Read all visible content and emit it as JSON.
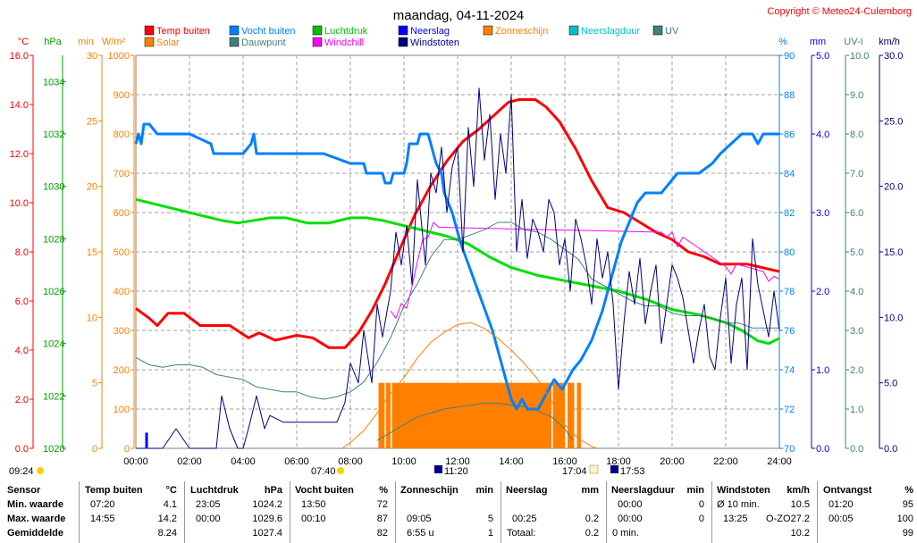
{
  "title": "maandag, 04-11-2024",
  "copyright": "Copyright © Meteo24-Culemborg",
  "chart_data": {
    "type": "line",
    "xlabel": "",
    "xlim": [
      0,
      24
    ],
    "x_ticks": [
      "00:00",
      "02:00",
      "04:00",
      "06:00",
      "08:00",
      "10:00",
      "12:00",
      "14:00",
      "16:00",
      "18:00",
      "20:00",
      "22:00",
      "24:00"
    ],
    "axes": {
      "temp": {
        "label": "°C",
        "range": [
          0,
          16
        ],
        "ticks": [
          "0.0",
          "2.0",
          "4.0",
          "6.0",
          "8.0",
          "10.0",
          "12.0",
          "14.0",
          "16.0"
        ]
      },
      "pressure": {
        "label": "hPa",
        "range": [
          1020,
          1035
        ],
        "ticks": [
          "1020",
          "1022",
          "1024",
          "1026",
          "1028",
          "1030",
          "1032",
          "1034"
        ]
      },
      "minutes": {
        "label": "min",
        "range": [
          0,
          30
        ],
        "ticks": [
          "0",
          "5",
          "10",
          "15",
          "20",
          "25",
          "30"
        ]
      },
      "solar": {
        "label": "W/m²",
        "range": [
          0,
          1000
        ],
        "ticks": [
          "0",
          "100",
          "200",
          "300",
          "400",
          "500",
          "600",
          "700",
          "800",
          "900",
          "1000"
        ]
      },
      "humidity": {
        "label": "%",
        "range": [
          70,
          90
        ],
        "ticks": [
          "70",
          "72",
          "74",
          "76",
          "78",
          "80",
          "82",
          "84",
          "86",
          "88",
          "90"
        ]
      },
      "rain": {
        "label": "mm",
        "range": [
          0,
          5
        ],
        "ticks": [
          "0.0",
          "1.0",
          "2.0",
          "3.0",
          "4.0",
          "5.0"
        ]
      },
      "uv": {
        "label": "UV-I",
        "range": [
          0,
          10
        ],
        "ticks": [
          "0.0",
          "1.0",
          "2.0",
          "3.0",
          "4.0",
          "5.0",
          "6.0",
          "7.0",
          "8.0",
          "9.0",
          "10.0"
        ]
      },
      "wind": {
        "label": "km/h",
        "range": [
          0,
          30
        ],
        "ticks": [
          "0.0",
          "5.0",
          "10.0",
          "15.0",
          "20.0",
          "25.0",
          "30.0"
        ]
      }
    },
    "legend": [
      {
        "name": "Temp buiten",
        "color": "#ff0000"
      },
      {
        "name": "Solar",
        "color": "#ff8000"
      },
      {
        "name": "Vocht buiten",
        "color": "#0080ff"
      },
      {
        "name": "Dauwpunt",
        "color": "#408080"
      },
      {
        "name": "Luchtdruk",
        "color": "#00c000"
      },
      {
        "name": "Windchill",
        "color": "#ff00ff"
      },
      {
        "name": "Neerslag",
        "color": "#0000ff"
      },
      {
        "name": "Windstoten",
        "color": "#000080"
      },
      {
        "name": "Zonneschijn",
        "color": "#ff8000"
      },
      {
        "name": "Neerslagduur",
        "color": "#00c0c0"
      },
      {
        "name": "UV",
        "color": "#408080"
      }
    ],
    "series": [
      {
        "name": "Temp buiten",
        "axis": "temp",
        "color": "#ff0000",
        "width": 3,
        "x": [
          0,
          0.5,
          0.8,
          1.2,
          1.8,
          2.4,
          2.9,
          3.5,
          4.2,
          4.6,
          5.2,
          6.0,
          6.6,
          7.2,
          7.8,
          8.3,
          8.8,
          9.3,
          9.8,
          10.4,
          11.0,
          11.6,
          12.2,
          12.8,
          13.4,
          13.9,
          14.3,
          14.9,
          15.3,
          15.8,
          16.4,
          17.0,
          17.6,
          18.2,
          18.8,
          19.4,
          20.0,
          20.6,
          21.2,
          21.8,
          22.4,
          22.8,
          23.2,
          23.6,
          24.0
        ],
        "y": [
          5.7,
          5.3,
          5.0,
          5.5,
          5.5,
          5.0,
          5.0,
          5.0,
          4.5,
          4.7,
          4.4,
          4.6,
          4.5,
          4.1,
          4.1,
          4.7,
          5.6,
          6.7,
          8.0,
          9.5,
          10.7,
          11.7,
          12.5,
          13.0,
          13.6,
          14.1,
          14.2,
          14.2,
          13.9,
          13.3,
          12.2,
          10.9,
          9.8,
          9.6,
          9.2,
          8.8,
          8.5,
          8.0,
          7.8,
          7.5,
          7.5,
          7.5,
          7.4,
          7.3,
          7.2
        ]
      },
      {
        "name": "Windchill",
        "axis": "temp",
        "color": "#ff00ff",
        "width": 1,
        "x": [
          9.5,
          9.7,
          9.9,
          10.1,
          10.3,
          10.5,
          10.7,
          10.9,
          11.1,
          11.3,
          19.6,
          19.8,
          20.0,
          20.2,
          20.4,
          22.0,
          22.2,
          22.4,
          23.4,
          23.6,
          23.8,
          24.0
        ],
        "y": [
          5.6,
          5.3,
          5.9,
          5.7,
          6.6,
          7.6,
          8.5,
          8.6,
          9.2,
          9.0,
          8.8,
          8.6,
          8.8,
          8.2,
          8.6,
          7.4,
          7.1,
          7.5,
          7.2,
          6.8,
          7.0,
          6.9
        ]
      },
      {
        "name": "Luchtdruk",
        "axis": "pressure",
        "color": "#00e000",
        "width": 3,
        "x": [
          0,
          0.8,
          1.6,
          2.4,
          3.2,
          3.8,
          4.4,
          5.0,
          5.6,
          6.4,
          7.2,
          8.0,
          8.6,
          9.2,
          10.0,
          10.8,
          11.6,
          12.4,
          13.2,
          14.0,
          15.0,
          16.0,
          17.0,
          18.0,
          19.0,
          20.0,
          21.0,
          22.0,
          22.6,
          23.2,
          23.6,
          24.0
        ],
        "y": [
          1029.5,
          1029.3,
          1029.1,
          1028.9,
          1028.7,
          1028.6,
          1028.7,
          1028.8,
          1028.8,
          1028.6,
          1028.6,
          1028.8,
          1028.8,
          1028.7,
          1028.5,
          1028.3,
          1028.1,
          1027.8,
          1027.3,
          1026.9,
          1026.6,
          1026.4,
          1026.2,
          1026.0,
          1025.7,
          1025.3,
          1025.1,
          1024.8,
          1024.5,
          1024.1,
          1024.0,
          1024.2
        ]
      },
      {
        "name": "Vocht buiten",
        "axis": "humidity",
        "color": "#0080ff",
        "width": 3,
        "x": [
          0,
          0.1,
          0.2,
          0.3,
          0.4,
          0.5,
          0.8,
          1.0,
          2.0,
          2.8,
          2.9,
          4.0,
          4.3,
          4.4,
          4.5,
          5.0,
          6.0,
          7.0,
          8.0,
          8.5,
          8.6,
          9.2,
          9.3,
          9.5,
          9.6,
          10.0,
          10.1,
          10.2,
          10.5,
          10.6,
          10.9,
          11.0,
          11.2,
          11.4,
          11.5,
          11.8,
          12.1,
          12.5,
          12.9,
          13.3,
          13.6,
          13.9,
          14.0,
          14.2,
          14.4,
          14.6,
          15.0,
          15.2,
          15.6,
          15.9,
          16.1,
          16.3,
          16.6,
          17.0,
          17.4,
          17.8,
          18.1,
          18.4,
          18.7,
          19.0,
          19.3,
          19.6,
          19.9,
          20.2,
          21.0,
          21.5,
          21.8,
          22.2,
          22.6,
          23.0,
          23.2,
          23.4,
          23.7,
          24.0
        ],
        "y": [
          85.5,
          86.0,
          85.5,
          86.5,
          86.5,
          86.5,
          86.0,
          86.0,
          86.0,
          85.5,
          85.0,
          85.0,
          85.5,
          86.0,
          85.0,
          85.0,
          85.0,
          85.0,
          84.5,
          84.5,
          84.0,
          84.0,
          83.5,
          83.5,
          84.0,
          84.0,
          84.5,
          85.5,
          85.5,
          86.0,
          86.0,
          85.5,
          84.5,
          84.0,
          83.0,
          82.0,
          80.5,
          79.0,
          77.5,
          76.0,
          74.5,
          73.0,
          72.5,
          72.0,
          72.5,
          72.0,
          72.0,
          72.5,
          73.5,
          73.0,
          73.5,
          74.0,
          74.5,
          75.5,
          77.0,
          79.0,
          80.5,
          81.5,
          82.5,
          83.0,
          83.0,
          83.0,
          83.5,
          84.0,
          84.0,
          84.5,
          85.0,
          85.5,
          86.0,
          86.0,
          85.5,
          86.0,
          86.0,
          86.0
        ]
      },
      {
        "name": "Dauwpunt",
        "axis": "temp",
        "color": "#408080",
        "width": 1,
        "x": [
          0,
          0.5,
          1.0,
          1.5,
          2.0,
          2.5,
          3.0,
          3.5,
          4.0,
          4.5,
          5.0,
          5.5,
          6.0,
          6.5,
          7.0,
          7.5,
          8.0,
          8.5,
          9.0,
          9.5,
          10.0,
          10.5,
          11.0,
          11.5,
          12.0,
          12.5,
          13.0,
          13.5,
          14.0,
          14.5,
          15.0,
          15.5,
          16.0,
          16.5,
          17.0,
          17.5,
          18.0,
          18.5,
          19.0,
          19.5,
          20.0,
          20.5,
          21.0,
          21.5,
          22.0,
          22.5,
          23.0,
          23.5,
          24.0
        ],
        "y": [
          3.7,
          3.4,
          3.3,
          3.4,
          3.4,
          3.3,
          3.0,
          2.9,
          2.8,
          2.5,
          2.4,
          2.3,
          2.3,
          2.1,
          2.0,
          2.1,
          2.3,
          2.7,
          3.5,
          4.5,
          5.8,
          6.7,
          7.8,
          8.5,
          8.5,
          8.7,
          8.9,
          9.2,
          9.2,
          8.9,
          8.8,
          8.5,
          8.1,
          7.7,
          6.9,
          6.6,
          6.3,
          6.0,
          5.8,
          5.8,
          5.5,
          5.4,
          5.4,
          5.3,
          5.1,
          5.1,
          4.9,
          4.9,
          4.9
        ]
      },
      {
        "name": "Solar",
        "axis": "solar",
        "color": "#ff8000",
        "width": 1,
        "x": [
          7.7,
          8.0,
          8.5,
          9.0,
          9.5,
          10.0,
          10.5,
          11.0,
          11.5,
          12.0,
          12.5,
          13.0,
          13.5,
          14.0,
          14.5,
          15.0,
          15.5,
          16.0,
          16.5,
          17.0,
          17.2
        ],
        "y": [
          0,
          15,
          45,
          90,
          140,
          180,
          230,
          270,
          295,
          315,
          320,
          305,
          280,
          250,
          215,
          175,
          120,
          60,
          25,
          5,
          0
        ]
      },
      {
        "name": "UV",
        "axis": "uv",
        "color": "#408080",
        "width": 1,
        "x": [
          9.0,
          9.5,
          10.0,
          10.5,
          11.0,
          11.5,
          12.0,
          12.5,
          13.0,
          13.5,
          14.0,
          14.5,
          15.0,
          15.5,
          16.0,
          16.3
        ],
        "y": [
          0.2,
          0.4,
          0.6,
          0.8,
          0.9,
          1.0,
          1.05,
          1.1,
          1.15,
          1.15,
          1.1,
          1.05,
          0.95,
          0.8,
          0.5,
          0.2
        ]
      },
      {
        "name": "Windstoten",
        "axis": "wind",
        "color": "#000080",
        "width": 1,
        "x": [
          0,
          0.5,
          1.0,
          1.5,
          2.0,
          2.5,
          3.0,
          3.2,
          3.5,
          3.8,
          4.0,
          4.2,
          4.5,
          4.8,
          5.0,
          5.5,
          6.0,
          6.5,
          7.0,
          7.5,
          7.8,
          8.0,
          8.3,
          8.5,
          8.8,
          9.0,
          9.2,
          9.5,
          9.7,
          9.9,
          10.1,
          10.3,
          10.5,
          10.8,
          11.0,
          11.2,
          11.4,
          11.6,
          11.8,
          12.0,
          12.2,
          12.4,
          12.6,
          12.8,
          13.0,
          13.2,
          13.4,
          13.6,
          13.8,
          14.0,
          14.2,
          14.4,
          14.6,
          14.8,
          15.0,
          15.2,
          15.4,
          15.6,
          15.8,
          16.0,
          16.2,
          16.4,
          16.6,
          16.8,
          17.0,
          17.2,
          17.4,
          17.6,
          17.8,
          18.0,
          18.2,
          18.4,
          18.6,
          18.8,
          19.0,
          19.2,
          19.4,
          19.6,
          19.8,
          20.0,
          20.2,
          20.4,
          20.6,
          20.8,
          21.0,
          21.2,
          21.4,
          21.6,
          21.8,
          22.0,
          22.2,
          22.4,
          22.6,
          22.8,
          23.0,
          23.2,
          23.4,
          23.6,
          23.8,
          24.0
        ],
        "y": [
          0,
          0,
          0,
          1.5,
          0,
          0,
          0,
          4.0,
          1.5,
          0,
          0,
          1.5,
          4.0,
          1.5,
          2.5,
          2.0,
          2.0,
          2.0,
          2.0,
          2.0,
          3.5,
          6.5,
          5.0,
          9.0,
          5.0,
          11.0,
          8.5,
          12.0,
          16.5,
          14.0,
          17.0,
          12.5,
          20.5,
          14.0,
          21.0,
          19.5,
          23.0,
          18.0,
          21.5,
          23.0,
          15.0,
          24.5,
          20.0,
          27.5,
          22.0,
          25.5,
          19.0,
          24.0,
          21.0,
          27.0,
          15.0,
          19.0,
          14.5,
          17.5,
          16.5,
          15.0,
          19.0,
          18.0,
          14.0,
          16.0,
          12.0,
          17.5,
          16.0,
          14.0,
          11.0,
          16.0,
          13.0,
          15.0,
          11.0,
          4.5,
          9.5,
          13.5,
          11.0,
          14.5,
          9.5,
          12.0,
          14.0,
          8.0,
          11.0,
          14.0,
          13.0,
          11.5,
          9.0,
          6.5,
          9.0,
          11.0,
          7.0,
          6.0,
          10.0,
          13.0,
          6.5,
          11.0,
          13.0,
          6.0,
          16.0,
          12.5,
          10.5,
          8.5,
          12.0,
          9.0
        ]
      },
      {
        "name": "Neerslag",
        "axis": "rain",
        "color": "#0000ff",
        "width": 3,
        "x": [
          0.4,
          0.4
        ],
        "y": [
          0,
          0.2
        ]
      }
    ],
    "bands": [
      {
        "name": "Zonneschijn",
        "axis": "minutes",
        "color": "#ff8000",
        "x0": [
          9.05,
          9.33,
          9.55,
          15.55,
          16.1,
          16.45
        ],
        "x1": [
          9.28,
          9.5,
          15.5,
          16.0,
          16.35,
          16.6
        ],
        "y": [
          5,
          5,
          5,
          5,
          5,
          5
        ]
      }
    ],
    "markers": {
      "day_start": "09:24",
      "sunrise": "07:40",
      "moon_phase_left": "11:20",
      "sunset_side": "17:04",
      "moon_phase_right": "17:53"
    }
  },
  "table": {
    "sensor": {
      "header": "Sensor",
      "rows": [
        "Min. waarde",
        "Max. waarde",
        "Gemiddelde"
      ]
    },
    "temp": {
      "header": "Temp buiten",
      "unit": "°C",
      "times": [
        "07:20",
        "14:55",
        ""
      ],
      "values": [
        "4.1",
        "14.2",
        "8.24"
      ]
    },
    "pressure": {
      "header": "Luchtdruk",
      "unit": "hPa",
      "times": [
        "23:05",
        "00:00",
        ""
      ],
      "values": [
        "1024.2",
        "1029.6",
        "1027.4"
      ]
    },
    "humidity": {
      "header": "Vocht buiten",
      "unit": "%",
      "times": [
        "13:50",
        "00:10",
        ""
      ],
      "values": [
        "72",
        "87",
        "82"
      ]
    },
    "sunshine": {
      "header": "Zonneschijn",
      "unit": "min",
      "times": [
        "",
        "09:05",
        "6:55 u"
      ],
      "values": [
        "",
        "5",
        "1"
      ]
    },
    "rain": {
      "header": "Neerslag",
      "unit": "mm",
      "times": [
        "",
        "00:25",
        "Totaal:"
      ],
      "values": [
        "",
        "0.2",
        "0.2"
      ]
    },
    "rainduration": {
      "header": "Neerslagduur",
      "unit": "min",
      "times": [
        "00:00",
        "00:00",
        "0 min."
      ],
      "values": [
        "0",
        "0",
        ""
      ]
    },
    "gusts": {
      "header": "Windstoten",
      "unit": "km/h",
      "times": [
        "Ø 10 min.",
        "13:25",
        ""
      ],
      "dirs": [
        "",
        "O-ZO",
        ""
      ],
      "values": [
        "10.5",
        "27.2",
        "10.2"
      ]
    },
    "radiation": {
      "header": "Ontvangst",
      "unit": "%",
      "times": [
        "01:20",
        "00:05",
        ""
      ],
      "values": [
        "95",
        "100",
        "99"
      ]
    }
  }
}
